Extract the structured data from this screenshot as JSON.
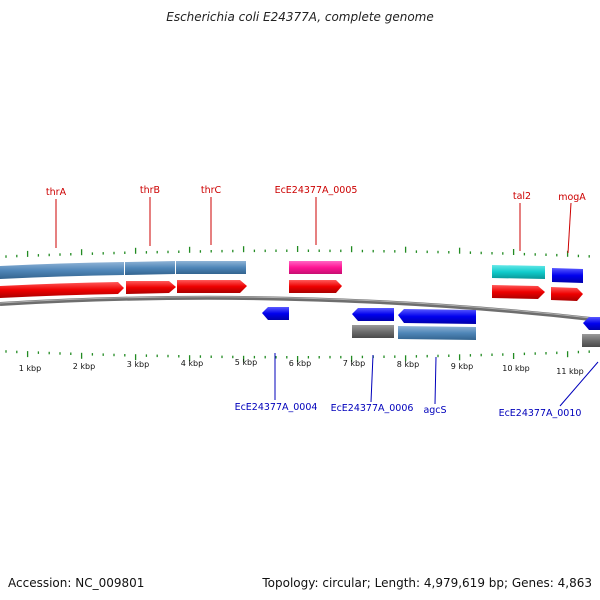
{
  "title": "Escherichia coli E24377A, complete genome",
  "footer": {
    "accession": "Accession: NC_009801",
    "topology": "Topology: circular; Length: 4,979,619 bp; Genes: 4,863"
  },
  "colors": {
    "top_label": "#cc0000",
    "bottom_label": "#0000bb",
    "tick": "#228b22",
    "backbone": "#777777"
  },
  "tick_labels": [
    "1 kbp",
    "2 kbp",
    "3 kbp",
    "4 kbp",
    "5 kbp",
    "6 kbp",
    "7 kbp",
    "8 kbp",
    "9 kbp",
    "10 kbp",
    "11 kbp"
  ],
  "top_labels": [
    "thrA",
    "thrB",
    "thrC",
    "EcE24377A_0005",
    "tal2",
    "mogA"
  ],
  "bottom_labels": [
    "EcE24377A_0004",
    "EcE24377A_0006",
    "agcS",
    "EcE24377A_0010"
  ]
}
